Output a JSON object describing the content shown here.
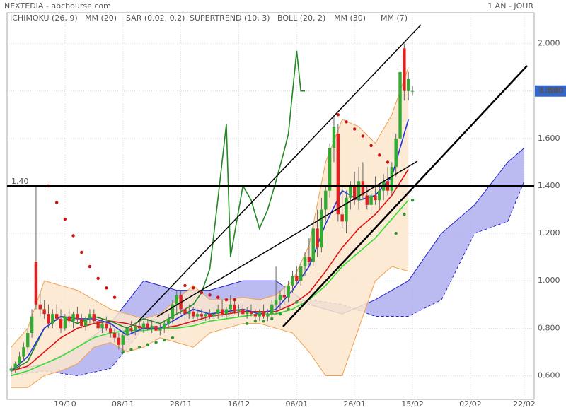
{
  "chart_data": {
    "type": "candlestick",
    "title": "NEXTEDIA - abcbourse.com",
    "subtitle": "1 AN - JOUR",
    "xlim": [
      -1,
      126.4
    ],
    "ylim": [
      0.5,
      2.13
    ],
    "grid": true,
    "up_color": "#33aa33",
    "down_color": "#dd2222",
    "xticks": [
      {
        "value": 13,
        "label": "19/10"
      },
      {
        "value": 27,
        "label": "08/11"
      },
      {
        "value": 41,
        "label": "28/11"
      },
      {
        "value": 55,
        "label": "16/12"
      },
      {
        "value": 69,
        "label": "06/01"
      },
      {
        "value": 83,
        "label": "26/01"
      },
      {
        "value": 97,
        "label": "15/02"
      },
      {
        "value": 111,
        "label": "02/02"
      },
      {
        "value": 124,
        "label": "22/02"
      }
    ],
    "yticks": [
      {
        "value": 0.6,
        "label": "0.600"
      },
      {
        "value": 0.8,
        "label": "0.800"
      },
      {
        "value": 1.0,
        "label": "1.000"
      },
      {
        "value": 1.2,
        "label": "1.200"
      },
      {
        "value": 1.4,
        "label": "1.400"
      },
      {
        "value": 1.6,
        "label": "1.600"
      },
      {
        "value": 1.8,
        "label": "1.800"
      },
      {
        "value": 2.0,
        "label": "2.000"
      }
    ],
    "last_price": {
      "value": 1.8,
      "label": "1.800"
    },
    "hline": {
      "value": 1.4,
      "label": "1.40"
    },
    "x": [
      0,
      1,
      2,
      3,
      4,
      5,
      6,
      7,
      8,
      9,
      10,
      11,
      12,
      13,
      14,
      15,
      16,
      17,
      18,
      19,
      20,
      21,
      22,
      23,
      24,
      25,
      26,
      27,
      28,
      29,
      30,
      31,
      32,
      33,
      34,
      35,
      36,
      37,
      38,
      39,
      40,
      41,
      42,
      43,
      44,
      45,
      46,
      47,
      48,
      49,
      50,
      51,
      52,
      53,
      54,
      55,
      56,
      57,
      58,
      59,
      60,
      61,
      62,
      63,
      64,
      65,
      66,
      67,
      68,
      69,
      70,
      71,
      72,
      73,
      74,
      75,
      76,
      77,
      78,
      79,
      80,
      81,
      82,
      83,
      84,
      85,
      86,
      87,
      88,
      89,
      90,
      91,
      92,
      93,
      94,
      95,
      96,
      97
    ],
    "open": [
      0.62,
      0.63,
      0.65,
      0.68,
      0.72,
      0.78,
      1.08,
      0.9,
      0.88,
      0.86,
      0.82,
      0.86,
      0.84,
      0.8,
      0.85,
      0.83,
      0.86,
      0.84,
      0.81,
      0.84,
      0.86,
      0.83,
      0.8,
      0.82,
      0.8,
      0.78,
      0.76,
      0.73,
      0.77,
      0.8,
      0.79,
      0.81,
      0.8,
      0.82,
      0.8,
      0.81,
      0.79,
      0.8,
      0.82,
      0.84,
      0.9,
      0.94,
      0.88,
      0.86,
      0.87,
      0.85,
      0.86,
      0.85,
      0.86,
      0.85,
      0.86,
      0.88,
      0.86,
      0.88,
      0.9,
      0.87,
      0.88,
      0.86,
      0.87,
      0.86,
      0.85,
      0.87,
      0.85,
      0.86,
      0.9,
      0.92,
      0.94,
      0.93,
      0.98,
      1.02,
      1.0,
      1.06,
      1.1,
      1.08,
      1.22,
      1.14,
      1.3,
      1.38,
      1.56,
      1.62,
      1.28,
      1.25,
      1.35,
      1.4,
      1.34,
      1.42,
      1.36,
      1.32,
      1.36,
      1.34,
      1.38,
      1.42,
      1.38,
      1.48,
      1.6,
      1.98,
      1.8,
      1.8
    ],
    "high": [
      0.64,
      0.66,
      0.7,
      0.74,
      0.8,
      0.88,
      1.4,
      0.95,
      0.92,
      0.9,
      0.88,
      0.9,
      0.88,
      0.86,
      0.88,
      0.87,
      0.89,
      0.86,
      0.85,
      0.88,
      0.88,
      0.85,
      0.84,
      0.85,
      0.82,
      0.8,
      0.78,
      0.78,
      0.82,
      0.83,
      0.82,
      0.84,
      0.83,
      0.84,
      0.83,
      0.84,
      0.82,
      0.83,
      0.86,
      0.92,
      0.96,
      0.96,
      0.92,
      0.9,
      0.89,
      0.88,
      0.88,
      0.87,
      0.88,
      0.87,
      0.9,
      0.92,
      0.89,
      0.94,
      0.92,
      0.9,
      0.9,
      0.89,
      0.9,
      0.88,
      0.88,
      0.9,
      0.88,
      0.92,
      1.06,
      0.96,
      0.98,
      1.0,
      1.04,
      1.06,
      1.08,
      1.12,
      1.18,
      1.25,
      1.3,
      1.35,
      1.4,
      1.58,
      1.7,
      1.66,
      1.4,
      1.38,
      1.42,
      1.46,
      1.48,
      1.5,
      1.4,
      1.38,
      1.44,
      1.4,
      1.45,
      1.48,
      1.5,
      1.62,
      1.9,
      2.0,
      1.88,
      1.82
    ],
    "low": [
      0.6,
      0.61,
      0.63,
      0.66,
      0.7,
      0.76,
      0.88,
      0.85,
      0.84,
      0.8,
      0.8,
      0.83,
      0.78,
      0.79,
      0.82,
      0.8,
      0.82,
      0.8,
      0.79,
      0.82,
      0.82,
      0.79,
      0.78,
      0.79,
      0.76,
      0.74,
      0.71,
      0.7,
      0.75,
      0.78,
      0.77,
      0.79,
      0.78,
      0.79,
      0.78,
      0.79,
      0.77,
      0.78,
      0.8,
      0.82,
      0.86,
      0.86,
      0.84,
      0.84,
      0.84,
      0.83,
      0.84,
      0.83,
      0.84,
      0.83,
      0.84,
      0.85,
      0.84,
      0.86,
      0.86,
      0.85,
      0.85,
      0.84,
      0.85,
      0.83,
      0.83,
      0.84,
      0.83,
      0.84,
      0.86,
      0.88,
      0.9,
      0.91,
      0.95,
      0.98,
      0.98,
      1.02,
      1.06,
      1.06,
      1.1,
      1.12,
      1.25,
      1.35,
      1.5,
      1.25,
      1.22,
      1.2,
      1.3,
      1.32,
      1.3,
      1.34,
      1.3,
      1.28,
      1.32,
      1.3,
      1.34,
      1.36,
      1.36,
      1.44,
      1.58,
      1.76,
      1.76,
      1.78
    ],
    "close": [
      0.63,
      0.65,
      0.68,
      0.72,
      0.78,
      0.85,
      0.9,
      0.88,
      0.86,
      0.82,
      0.86,
      0.84,
      0.8,
      0.85,
      0.83,
      0.86,
      0.84,
      0.81,
      0.84,
      0.86,
      0.83,
      0.8,
      0.82,
      0.8,
      0.78,
      0.76,
      0.73,
      0.77,
      0.8,
      0.79,
      0.81,
      0.8,
      0.82,
      0.8,
      0.81,
      0.79,
      0.8,
      0.82,
      0.84,
      0.9,
      0.94,
      0.88,
      0.86,
      0.87,
      0.85,
      0.86,
      0.85,
      0.86,
      0.85,
      0.86,
      0.88,
      0.86,
      0.88,
      0.9,
      0.87,
      0.88,
      0.86,
      0.87,
      0.86,
      0.85,
      0.87,
      0.85,
      0.86,
      0.9,
      0.92,
      0.94,
      0.93,
      0.98,
      1.02,
      1.0,
      1.06,
      1.1,
      1.08,
      1.22,
      1.14,
      1.3,
      1.38,
      1.56,
      1.65,
      1.28,
      1.25,
      1.35,
      1.4,
      1.34,
      1.42,
      1.36,
      1.32,
      1.36,
      1.34,
      1.38,
      1.42,
      1.38,
      1.48,
      1.6,
      1.88,
      1.8,
      1.85,
      1.8
    ],
    "series": [
      {
        "name": "ICHIMOKU (26, 9)",
        "color": "#2222cc",
        "fill": "#aaaaee",
        "style": "cloud",
        "x": [
          0,
          8,
          16,
          24,
          32,
          40,
          48,
          56,
          64,
          72,
          80,
          88,
          96,
          104,
          112,
          120,
          124
        ],
        "values": [
          0.6,
          0.62,
          0.6,
          0.63,
          0.8,
          0.8,
          0.84,
          0.86,
          0.88,
          0.92,
          0.9,
          0.85,
          0.85,
          0.92,
          1.2,
          1.25,
          1.42
        ],
        "values2": [
          0.62,
          0.65,
          0.72,
          0.82,
          1.0,
          0.96,
          0.96,
          1.0,
          1.0,
          0.9,
          0.86,
          0.92,
          1.0,
          1.2,
          1.32,
          1.5,
          1.56
        ]
      },
      {
        "name": "MM (20)",
        "color": "#dd1111",
        "style": "line",
        "x": [
          0,
          4,
          8,
          12,
          16,
          20,
          24,
          28,
          32,
          36,
          40,
          44,
          48,
          52,
          56,
          60,
          64,
          68,
          72,
          76,
          80,
          84,
          88,
          92,
          96
        ],
        "values": [
          0.62,
          0.64,
          0.7,
          0.76,
          0.8,
          0.82,
          0.83,
          0.82,
          0.8,
          0.8,
          0.81,
          0.83,
          0.85,
          0.86,
          0.87,
          0.87,
          0.87,
          0.9,
          0.95,
          1.04,
          1.14,
          1.22,
          1.28,
          1.36,
          1.47
        ]
      },
      {
        "name": "SAR (0.02, 0.2)",
        "color": "#cc1111",
        "color_below": "#339933",
        "style": "sar",
        "x": [
          9,
          11,
          13,
          15,
          17,
          19,
          21,
          23,
          25,
          27,
          29,
          31,
          33,
          35,
          37,
          39,
          42,
          44,
          46,
          48,
          50,
          52,
          54,
          57,
          59,
          61,
          63,
          65,
          67,
          69,
          79,
          81,
          83,
          85,
          87,
          89,
          91,
          93,
          95,
          97
        ],
        "values": [
          1.4,
          1.33,
          1.26,
          1.19,
          1.12,
          1.06,
          1.01,
          0.97,
          0.93,
          0.7,
          0.71,
          0.72,
          0.73,
          0.74,
          0.75,
          0.76,
          0.98,
          0.97,
          0.95,
          0.94,
          0.93,
          0.92,
          0.92,
          0.82,
          0.83,
          0.83,
          0.84,
          0.86,
          0.88,
          0.91,
          1.7,
          1.67,
          1.64,
          1.61,
          1.57,
          1.53,
          1.5,
          1.2,
          1.28,
          1.34
        ]
      },
      {
        "name": "SUPERTREND (10, 3)",
        "color": "#228822",
        "style": "line",
        "x": [
          0,
          4,
          8,
          12,
          16,
          20,
          24,
          28,
          32,
          36,
          40,
          44,
          46,
          48,
          50,
          52,
          53,
          56,
          58,
          60,
          62,
          64,
          66,
          67,
          69,
          70,
          71
        ],
        "values": [
          0.62,
          0.66,
          0.8,
          0.85,
          0.82,
          0.85,
          0.83,
          0.8,
          0.84,
          0.82,
          0.86,
          0.9,
          0.95,
          1.05,
          1.35,
          1.66,
          1.1,
          1.4,
          1.34,
          1.22,
          1.3,
          1.42,
          1.55,
          1.62,
          1.97,
          1.8,
          1.8
        ]
      },
      {
        "name": "BOLL (20, 2)",
        "color": "#f0a050",
        "fill": "#fbe6cc",
        "style": "band",
        "x": [
          0,
          4,
          8,
          12,
          16,
          20,
          24,
          28,
          32,
          36,
          40,
          44,
          48,
          52,
          56,
          60,
          64,
          68,
          72,
          76,
          80,
          84,
          88,
          92,
          96
        ],
        "values": [
          0.72,
          0.8,
          1.0,
          0.98,
          0.96,
          0.92,
          0.88,
          0.86,
          0.84,
          0.86,
          0.92,
          0.98,
          0.92,
          0.92,
          0.93,
          0.92,
          0.94,
          1.0,
          1.15,
          1.5,
          1.68,
          1.65,
          1.58,
          1.7,
          1.9
        ],
        "values2": [
          0.55,
          0.55,
          0.6,
          0.62,
          0.65,
          0.72,
          0.74,
          0.7,
          0.72,
          0.76,
          0.74,
          0.72,
          0.78,
          0.8,
          0.82,
          0.82,
          0.8,
          0.78,
          0.7,
          0.6,
          0.6,
          0.8,
          1.0,
          1.06,
          1.04
        ]
      },
      {
        "name": "MM (30)",
        "color": "#33dd33",
        "style": "line",
        "x": [
          0,
          4,
          8,
          12,
          16,
          20,
          24,
          28,
          32,
          36,
          40,
          44,
          48,
          52,
          56,
          60,
          64,
          68,
          72,
          76,
          80,
          84,
          88,
          92,
          96
        ],
        "values": [
          0.6,
          0.62,
          0.65,
          0.68,
          0.72,
          0.76,
          0.78,
          0.79,
          0.79,
          0.8,
          0.8,
          0.81,
          0.83,
          0.84,
          0.85,
          0.86,
          0.86,
          0.88,
          0.92,
          0.98,
          1.06,
          1.12,
          1.18,
          1.26,
          1.34
        ]
      },
      {
        "name": "MM (7)",
        "color": "#2233dd",
        "style": "line",
        "x": [
          0,
          4,
          8,
          12,
          16,
          20,
          24,
          28,
          32,
          36,
          40,
          44,
          48,
          52,
          56,
          60,
          64,
          68,
          72,
          76,
          80,
          84,
          88,
          92,
          96
        ],
        "values": [
          0.62,
          0.68,
          0.8,
          0.85,
          0.84,
          0.84,
          0.82,
          0.77,
          0.8,
          0.8,
          0.84,
          0.88,
          0.86,
          0.87,
          0.88,
          0.86,
          0.88,
          0.96,
          1.06,
          1.24,
          1.38,
          1.34,
          1.36,
          1.44,
          1.68
        ]
      }
    ]
  }
}
